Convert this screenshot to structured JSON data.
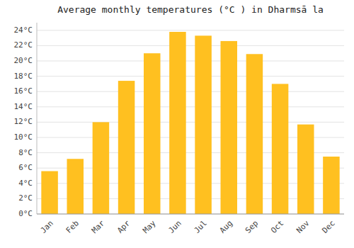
{
  "chart_data": {
    "type": "bar",
    "title": "Average monthly temperatures (°C ) in Dharmsā la",
    "categories": [
      "Jan",
      "Feb",
      "Mar",
      "Apr",
      "May",
      "Jun",
      "Jul",
      "Aug",
      "Sep",
      "Oct",
      "Nov",
      "Dec"
    ],
    "values": [
      5.6,
      7.2,
      12.0,
      17.4,
      21.0,
      23.8,
      23.3,
      22.6,
      20.9,
      17.0,
      11.7,
      7.5
    ],
    "color": "#FFC020",
    "ylim": [
      0,
      25
    ],
    "yticks": [
      {
        "value": 0,
        "label": "0°C"
      },
      {
        "value": 2,
        "label": "2°C"
      },
      {
        "value": 4,
        "label": "4°C"
      },
      {
        "value": 6,
        "label": "6°C"
      },
      {
        "value": 8,
        "label": "8°C"
      },
      {
        "value": 10,
        "label": "10°C"
      },
      {
        "value": 12,
        "label": "12°C"
      },
      {
        "value": 14,
        "label": "14°C"
      },
      {
        "value": 16,
        "label": "16°C"
      },
      {
        "value": 18,
        "label": "18°C"
      },
      {
        "value": 20,
        "label": "20°C"
      },
      {
        "value": 22,
        "label": "22°C"
      },
      {
        "value": 24,
        "label": "24°C"
      }
    ],
    "grid": true
  }
}
